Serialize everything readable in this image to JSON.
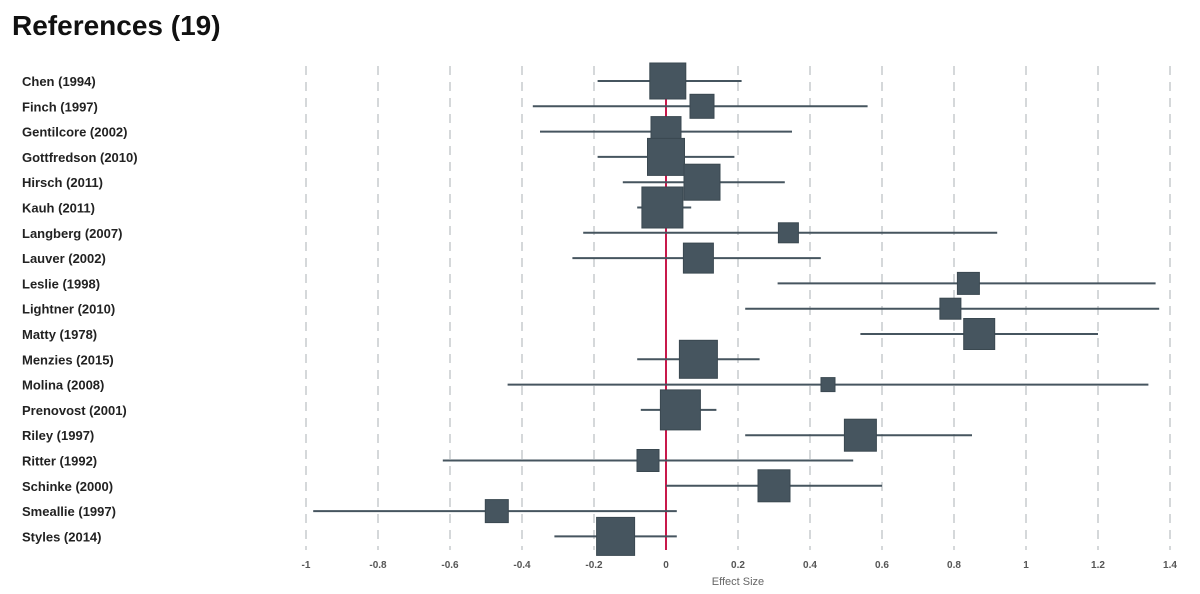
{
  "title": "References (19)",
  "chart_data": {
    "type": "forest",
    "title": "References (19)",
    "xlabel": "Effect Size",
    "xlim": [
      -1,
      1.4
    ],
    "xticks": [
      -1,
      -0.8,
      -0.6,
      -0.4,
      -0.2,
      0,
      0.2,
      0.4,
      0.6,
      0.8,
      1,
      1.2,
      1.4
    ],
    "xtick_labels": [
      "-1",
      "-0.8",
      "-0.6",
      "-0.4",
      "-0.2",
      "0",
      "0.2",
      "0.4",
      "0.6",
      "0.8",
      "1",
      "1.2",
      "1.4"
    ],
    "grid": true,
    "reference_line": 0,
    "colors": {
      "marker": "#46555f",
      "reference": "#c8194b",
      "grid": "#d5d8da"
    },
    "studies": [
      {
        "label": "Chen (1994)",
        "effect": 0.005,
        "lower": -0.19,
        "upper": 0.21,
        "weight": 36
      },
      {
        "label": "Finch (1997)",
        "effect": 0.1,
        "lower": -0.37,
        "upper": 0.56,
        "weight": 24
      },
      {
        "label": "Gentilcore (2002)",
        "effect": 0.0,
        "lower": -0.35,
        "upper": 0.35,
        "weight": 30
      },
      {
        "label": "Gottfredson (2010)",
        "effect": 0.0,
        "lower": -0.19,
        "upper": 0.19,
        "weight": 37
      },
      {
        "label": "Hirsch (2011)",
        "effect": 0.1,
        "lower": -0.12,
        "upper": 0.33,
        "weight": 36
      },
      {
        "label": "Kauh (2011)",
        "effect": -0.01,
        "lower": -0.08,
        "upper": 0.07,
        "weight": 41
      },
      {
        "label": "Langberg (2007)",
        "effect": 0.34,
        "lower": -0.23,
        "upper": 0.92,
        "weight": 20
      },
      {
        "label": "Lauver (2002)",
        "effect": 0.09,
        "lower": -0.26,
        "upper": 0.43,
        "weight": 30
      },
      {
        "label": "Leslie (1998)",
        "effect": 0.84,
        "lower": 0.31,
        "upper": 1.36,
        "weight": 22
      },
      {
        "label": "Lightner (2010)",
        "effect": 0.79,
        "lower": 0.22,
        "upper": 1.37,
        "weight": 21
      },
      {
        "label": "Matty (1978)",
        "effect": 0.87,
        "lower": 0.54,
        "upper": 1.2,
        "weight": 31
      },
      {
        "label": "Menzies (2015)",
        "effect": 0.09,
        "lower": -0.08,
        "upper": 0.26,
        "weight": 38
      },
      {
        "label": "Molina (2008)",
        "effect": 0.45,
        "lower": -0.44,
        "upper": 1.34,
        "weight": 14
      },
      {
        "label": "Prenovost (2001)",
        "effect": 0.04,
        "lower": -0.07,
        "upper": 0.14,
        "weight": 40
      },
      {
        "label": "Riley (1997)",
        "effect": 0.54,
        "lower": 0.22,
        "upper": 0.85,
        "weight": 32
      },
      {
        "label": "Ritter (1992)",
        "effect": -0.05,
        "lower": -0.62,
        "upper": 0.52,
        "weight": 22
      },
      {
        "label": "Schinke (2000)",
        "effect": 0.3,
        "lower": 0.0,
        "upper": 0.6,
        "weight": 32
      },
      {
        "label": "Smeallie (1997)",
        "effect": -0.47,
        "lower": -0.98,
        "upper": 0.03,
        "weight": 23
      },
      {
        "label": "Styles (2014)",
        "effect": -0.14,
        "lower": -0.31,
        "upper": 0.03,
        "weight": 38
      }
    ]
  }
}
